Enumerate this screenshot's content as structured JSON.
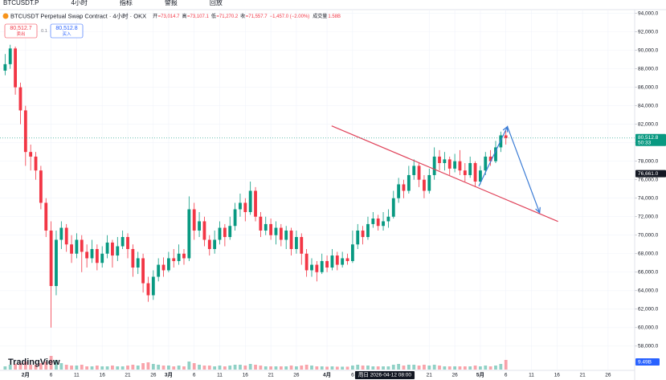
{
  "chart_data": {
    "type": "candlestick",
    "toolbar": [
      "BTCUSDT.P",
      "4小时",
      "指标",
      "警报",
      "回放"
    ],
    "title": "BTCUSDT Perpetual Swap Contract · 4小时 · OKX",
    "ohlc_legend": [
      {
        "key": "开",
        "label": "=73,014.7"
      },
      {
        "key": "高",
        "label": "=73,107.1"
      },
      {
        "key": "低",
        "label": "=71,270.2"
      },
      {
        "key": "收",
        "label": "=71,557.7"
      }
    ],
    "change_label": "−1,457.0 (−2.00%)",
    "volume_legend": {
      "key": "成交量",
      "label": "1.58B"
    },
    "sell_box": {
      "price": "80,512.7",
      "text": "卖出"
    },
    "spread": "0.1",
    "buy_box": {
      "price": "80,512.8",
      "text": "买入"
    },
    "up_color": "#089981",
    "down_color": "#f23645",
    "x": [
      -4,
      -3,
      -2,
      -1,
      0,
      1,
      2,
      3,
      4,
      5,
      6,
      7,
      8,
      9,
      10,
      11,
      12,
      13,
      14,
      15,
      16,
      17,
      18,
      19,
      20,
      21,
      22,
      23,
      24,
      25,
      26,
      27,
      28,
      29,
      30,
      31,
      32,
      33,
      34,
      35,
      36,
      37,
      38,
      39,
      40,
      41,
      42,
      43,
      44,
      45,
      46,
      47,
      48,
      49,
      50,
      51,
      52,
      53,
      54,
      55,
      56,
      57,
      58,
      59,
      60,
      61,
      62,
      63,
      64,
      65,
      66,
      67,
      68,
      69,
      70,
      71,
      72,
      73,
      74,
      75,
      76,
      77,
      78,
      79,
      80,
      81,
      82,
      83,
      84,
      85,
      86,
      87,
      88,
      89,
      90,
      91,
      92,
      93,
      94
    ],
    "open": [
      87800,
      88500,
      90200,
      86000,
      83500,
      79000,
      78500,
      77000,
      73500,
      70500,
      64500,
      69500,
      70800,
      69000,
      68000,
      69500,
      68200,
      67500,
      68500,
      67000,
      68000,
      69200,
      67800,
      68800,
      69800,
      68500,
      66500,
      67500,
      64800,
      63500,
      65500,
      66800,
      66200,
      67500,
      67200,
      68000,
      67500,
      72800,
      70500,
      71500,
      69500,
      68500,
      69500,
      70800,
      69800,
      71000,
      72800,
      73500,
      72500,
      74800,
      72000,
      70500,
      71200,
      70000,
      70800,
      69500,
      70500,
      68500,
      69800,
      68000,
      66200,
      66800,
      66000,
      67200,
      66500,
      67800,
      66800,
      67500,
      67200,
      69000,
      70500,
      69800,
      71200,
      71800,
      71000,
      71500,
      72000,
      74000,
      75500,
      74800,
      76500,
      77500,
      76000,
      74800,
      76500,
      78500,
      77800,
      78200,
      77200,
      78000,
      77000,
      76500,
      77800,
      75800,
      77000,
      78500,
      78000,
      79500,
      80800
    ],
    "high": [
      89600,
      90600,
      90400,
      86500,
      84000,
      79800,
      79000,
      77500,
      74000,
      71500,
      70500,
      71500,
      71200,
      70000,
      70200,
      70000,
      69000,
      69500,
      69000,
      68800,
      70000,
      69500,
      69800,
      70500,
      70200,
      69000,
      68200,
      68000,
      65500,
      66200,
      67500,
      67600,
      68200,
      68500,
      69000,
      68500,
      74200,
      73500,
      72500,
      72000,
      70000,
      70500,
      71500,
      71200,
      72000,
      73500,
      74500,
      74000,
      75800,
      75200,
      72500,
      72000,
      71800,
      71500,
      71200,
      71000,
      70800,
      70500,
      70200,
      68500,
      67500,
      67200,
      68000,
      67800,
      68500,
      68200,
      68200,
      68000,
      70500,
      71200,
      71000,
      72000,
      72500,
      72200,
      72500,
      72800,
      74800,
      76200,
      76000,
      77500,
      78200,
      77800,
      76500,
      77200,
      79500,
      79200,
      79000,
      78500,
      78800,
      79200,
      77800,
      78500,
      78000,
      77500,
      79000,
      79200,
      80200,
      81200,
      81300
    ],
    "low": [
      87300,
      88000,
      85200,
      82000,
      77500,
      77000,
      76000,
      72800,
      69800,
      60000,
      63500,
      68500,
      68200,
      67000,
      67500,
      66000,
      66500,
      67000,
      66200,
      66500,
      67500,
      66500,
      67200,
      68500,
      67500,
      65500,
      65800,
      63800,
      62800,
      63000,
      65000,
      65500,
      66000,
      66500,
      66800,
      66800,
      67200,
      69500,
      69800,
      68800,
      67800,
      68000,
      69000,
      68800,
      69500,
      70500,
      72000,
      71500,
      72200,
      71500,
      69800,
      70000,
      69500,
      69000,
      68800,
      68500,
      67800,
      68000,
      66800,
      65500,
      65500,
      65000,
      65800,
      66000,
      66200,
      66200,
      66500,
      66800,
      67000,
      68500,
      69000,
      69500,
      70800,
      70500,
      70500,
      70800,
      71800,
      73500,
      74000,
      74500,
      76000,
      75200,
      74000,
      74500,
      76000,
      77000,
      77000,
      76500,
      76800,
      76500,
      75800,
      76200,
      75200,
      75500,
      76500,
      77500,
      77800,
      79000,
      79800
    ],
    "close": [
      88500,
      90200,
      86000,
      83500,
      79000,
      78500,
      77000,
      73500,
      70500,
      64500,
      69500,
      70800,
      69000,
      68000,
      69500,
      68200,
      67500,
      68500,
      67000,
      68000,
      69200,
      67800,
      68800,
      69800,
      68500,
      66500,
      67500,
      64800,
      63500,
      65500,
      66800,
      66200,
      67500,
      67200,
      68000,
      67500,
      72800,
      70500,
      71500,
      69500,
      68500,
      69500,
      70800,
      69800,
      71000,
      72800,
      73500,
      72500,
      74800,
      72000,
      70500,
      71200,
      70000,
      70800,
      69500,
      70500,
      68500,
      69800,
      68000,
      66200,
      66800,
      66000,
      67200,
      66500,
      67800,
      66800,
      67500,
      67200,
      69000,
      70500,
      69800,
      71200,
      71800,
      71000,
      71500,
      72000,
      74000,
      75500,
      74800,
      76500,
      77500,
      76000,
      74800,
      76500,
      78500,
      77800,
      78200,
      77200,
      78000,
      77000,
      76500,
      77800,
      75800,
      77000,
      78500,
      78000,
      79500,
      80800,
      80512.8
    ],
    "volume": [
      2,
      3,
      3.5,
      4,
      5,
      3,
      3,
      4,
      5,
      8.5,
      6,
      4,
      3,
      2.5,
      2.5,
      3,
      2,
      2,
      2.5,
      2,
      2,
      2.5,
      2,
      2,
      2.5,
      3,
      2.5,
      4,
      4.5,
      3.5,
      3,
      2.5,
      2.5,
      2,
      2.5,
      2,
      5,
      4,
      3,
      2.5,
      2.5,
      2,
      2.5,
      2,
      2.5,
      3,
      3,
      2.5,
      3.5,
      3,
      2.5,
      2,
      2,
      2,
      2,
      2,
      2.5,
      2,
      2.5,
      3,
      2.5,
      2,
      2,
      1.8,
      2,
      1.8,
      1.8,
      1.8,
      2.5,
      3,
      2.5,
      2.5,
      2,
      2,
      2,
      2,
      3,
      3.5,
      2.5,
      3,
      3,
      2.5,
      3,
      2.5,
      3,
      2.5,
      2,
      2,
      2,
      2,
      2,
      2,
      2.5,
      2,
      2.5,
      2,
      2.5,
      3.5,
      6
    ],
    "volume_ylim": [
      0,
      10
    ],
    "volume_axis_label": "9.49B",
    "xlim": [
      -5,
      119.2
    ],
    "xticks": [
      {
        "value": 0,
        "label": "2月"
      },
      {
        "value": 5,
        "label": "6"
      },
      {
        "value": 10,
        "label": "11"
      },
      {
        "value": 15,
        "label": "16"
      },
      {
        "value": 20,
        "label": "21"
      },
      {
        "value": 25,
        "label": "26"
      },
      {
        "value": 28,
        "label": "3月"
      },
      {
        "value": 33,
        "label": "6"
      },
      {
        "value": 38,
        "label": "11"
      },
      {
        "value": 43,
        "label": "16"
      },
      {
        "value": 48,
        "label": "21"
      },
      {
        "value": 53,
        "label": "26"
      },
      {
        "value": 59,
        "label": "4月"
      },
      {
        "value": 64,
        "label": "6"
      },
      {
        "value": 79,
        "label": "21"
      },
      {
        "value": 84,
        "label": "26"
      },
      {
        "value": 89,
        "label": "5月"
      },
      {
        "value": 94,
        "label": "6"
      },
      {
        "value": 99,
        "label": "11"
      },
      {
        "value": 104,
        "label": "16"
      },
      {
        "value": 109,
        "label": "21"
      },
      {
        "value": 114,
        "label": "26"
      }
    ],
    "ylim": [
      57200,
      94400
    ],
    "yticks": [
      {
        "value": 58000,
        "label": "58,000.0"
      },
      {
        "value": 60000,
        "label": "60,000.0"
      },
      {
        "value": 62000,
        "label": "62,000.0"
      },
      {
        "value": 64000,
        "label": "64,000.0"
      },
      {
        "value": 66000,
        "label": "66,000.0"
      },
      {
        "value": 68000,
        "label": "68,000.0"
      },
      {
        "value": 70000,
        "label": "70,000.0"
      },
      {
        "value": 72000,
        "label": "72,000.0"
      },
      {
        "value": 74000,
        "label": "74,000.0"
      },
      {
        "value": 76000,
        "label": "76,000.0"
      },
      {
        "value": 78000,
        "label": "78,000.0"
      },
      {
        "value": 80000,
        "label": "80,000.0"
      },
      {
        "value": 82000,
        "label": "82,000.0"
      },
      {
        "value": 84000,
        "label": "84,000.0"
      },
      {
        "value": 86000,
        "label": "86,000.0"
      },
      {
        "value": 88000,
        "label": "88,000.0"
      },
      {
        "value": 90000,
        "label": "90,000.0"
      },
      {
        "value": 92000,
        "label": "92,000.0"
      },
      {
        "value": 94000,
        "label": "94,000.0"
      }
    ],
    "grid": true,
    "last_price": {
      "value": 80512.8,
      "label": "80,512.8",
      "countdown": "50:33"
    },
    "crosshair": {
      "price": 76661.0,
      "price_label": "76,661.0",
      "x": 70.3,
      "x_label": "周日 2026-04-12 08:00"
    },
    "trend_line": {
      "color": "#e0435a",
      "x": [
        59.9,
        104.2
      ],
      "y": [
        81826,
        71478
      ]
    },
    "arrow_path": {
      "color": "#3a7bd5",
      "x": [
        88.7,
        94.3,
        100.6
      ],
      "y": [
        75300,
        81740,
        72430
      ]
    },
    "brand": "TradingView"
  }
}
